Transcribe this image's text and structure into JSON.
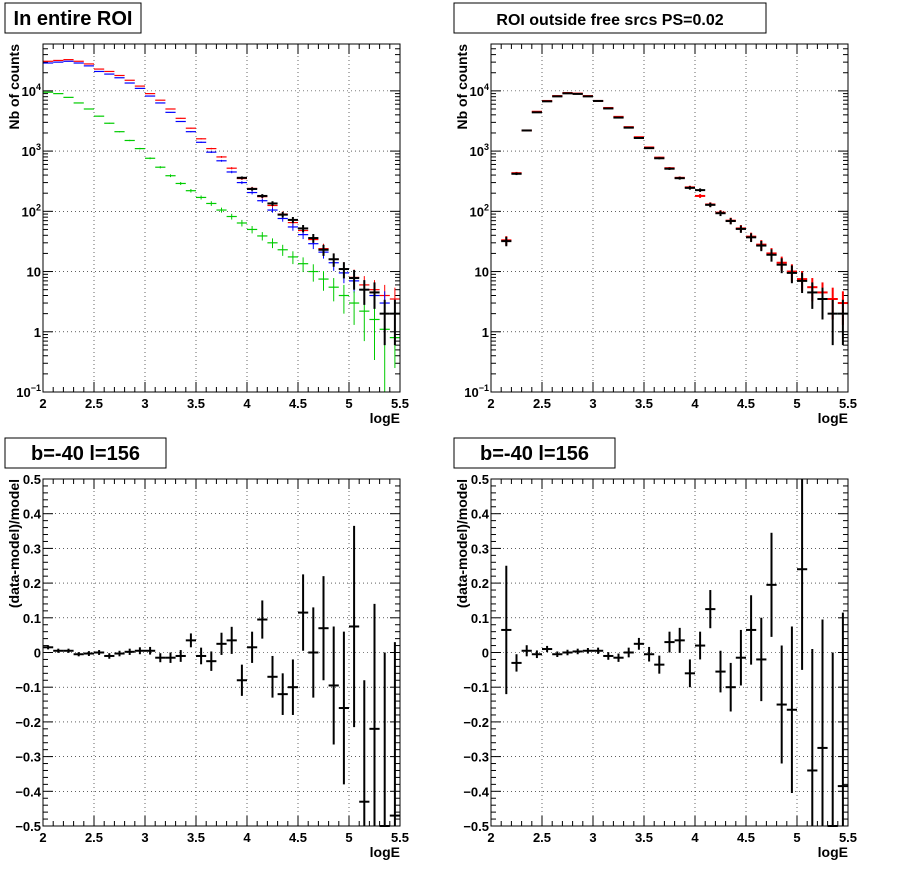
{
  "chart_data": [
    {
      "type": "scatter",
      "title": "In entire ROI",
      "xlabel": "logE",
      "ylabel": "Nb of counts",
      "xlim": [
        2,
        5.5
      ],
      "ylim": [
        0.1,
        60000
      ],
      "yscale": "log",
      "grid": true,
      "x_ticks": [
        "2",
        "2.5",
        "3",
        "3.5",
        "4",
        "4.5",
        "5",
        "5.5"
      ],
      "y_ticks": [
        "10^-1",
        "1",
        "10",
        "10^2",
        "10^3",
        "10^4"
      ],
      "series": [
        {
          "color": "#ff0000",
          "style": "bins",
          "x": [
            2.05,
            2.15,
            2.25,
            2.35,
            2.45,
            2.55,
            2.65,
            2.75,
            2.85,
            2.95,
            3.05,
            3.15,
            3.25,
            3.35,
            3.45,
            3.55,
            3.65,
            3.75,
            3.85,
            3.95,
            4.05,
            4.15,
            4.25,
            4.35,
            4.45,
            4.55,
            4.65,
            4.75,
            4.85,
            4.95,
            5.05,
            5.15,
            5.25,
            5.35,
            5.45
          ],
          "y": [
            31000,
            32000,
            33000,
            31000,
            28000,
            23000,
            21000,
            18000,
            15000,
            12000,
            9000,
            7000,
            5000,
            3500,
            2400,
            1600,
            1100,
            800,
            520,
            350,
            240,
            175,
            125,
            90,
            65,
            48,
            34,
            24,
            16,
            11,
            8,
            6,
            5,
            4,
            3.5
          ],
          "err": [
            176,
            179,
            182,
            176,
            167,
            152,
            145,
            134,
            122,
            110,
            95,
            84,
            71,
            59,
            49,
            40,
            33,
            28,
            23,
            19,
            15,
            13,
            11,
            9.5,
            8,
            7,
            5.8,
            4.9,
            4,
            3.3,
            2.8,
            2.4,
            2.2,
            2,
            1.9
          ]
        },
        {
          "color": "#0000ff",
          "style": "bins",
          "x": [
            2.05,
            2.15,
            2.25,
            2.35,
            2.45,
            2.55,
            2.65,
            2.75,
            2.85,
            2.95,
            3.05,
            3.15,
            3.25,
            3.35,
            3.45,
            3.55,
            3.65,
            3.75,
            3.85,
            3.95,
            4.05,
            4.15,
            4.25,
            4.35,
            4.45,
            4.55,
            4.65,
            4.75,
            4.85,
            4.95,
            5.05,
            5.15,
            5.25,
            5.35,
            5.45
          ],
          "y": [
            29000,
            30000,
            31000,
            29000,
            26000,
            21000,
            19000,
            16500,
            13500,
            11000,
            8200,
            6300,
            4400,
            3100,
            2100,
            1400,
            960,
            690,
            450,
            300,
            205,
            150,
            105,
            76,
            55,
            41,
            29,
            21,
            14,
            9.5,
            7,
            5,
            4,
            3,
            2
          ],
          "err": [
            170,
            173,
            176,
            170,
            161,
            145,
            138,
            128,
            116,
            105,
            91,
            79,
            66,
            56,
            46,
            37,
            31,
            26,
            21,
            17,
            14,
            12,
            10,
            8.7,
            7.4,
            6.4,
            5.4,
            4.6,
            3.7,
            3.1,
            2.6,
            2.2,
            2,
            1.7,
            1.4
          ]
        },
        {
          "color": "#00cc00",
          "style": "bins",
          "x": [
            2.05,
            2.15,
            2.25,
            2.35,
            2.45,
            2.55,
            2.65,
            2.75,
            2.85,
            2.95,
            3.05,
            3.15,
            3.25,
            3.35,
            3.45,
            3.55,
            3.65,
            3.75,
            3.85,
            3.95,
            4.05,
            4.15,
            4.25,
            4.35,
            4.45,
            4.55,
            4.65,
            4.75,
            4.85,
            4.95,
            5.05,
            5.15,
            5.25,
            5.35,
            5.45
          ],
          "y": [
            9500,
            9000,
            7800,
            6300,
            5000,
            3800,
            2900,
            2100,
            1500,
            1100,
            760,
            540,
            390,
            290,
            220,
            170,
            135,
            105,
            82,
            64,
            50,
            39,
            30,
            23,
            17.5,
            13.5,
            10,
            7.5,
            5.5,
            4,
            3,
            2.2,
            1.6,
            1.1,
            0.8
          ],
          "err": [
            97,
            95,
            88,
            79,
            71,
            62,
            54,
            46,
            39,
            33,
            28,
            23,
            20,
            17,
            15,
            13,
            12,
            10,
            9,
            8,
            7,
            6.2,
            5.5,
            4.8,
            4.2,
            3.7,
            3.2,
            2.7,
            2.3,
            2,
            1.7,
            1.5,
            1.26,
            1.05,
            0.55
          ]
        },
        {
          "color": "#000000",
          "style": "points",
          "x": [
            3.95,
            4.05,
            4.15,
            4.25,
            4.35,
            4.45,
            4.55,
            4.65,
            4.75,
            4.85,
            4.95,
            5.05,
            5.15,
            5.25,
            5.35,
            5.45
          ],
          "y": [
            360,
            235,
            180,
            135,
            88,
            72,
            52,
            36,
            23,
            16,
            11,
            7.8,
            5,
            4.5,
            2,
            2
          ],
          "err": [
            19,
            15,
            13,
            12,
            9.4,
            8.5,
            7.2,
            6,
            4.8,
            4,
            3.3,
            2.8,
            2.2,
            2.1,
            1.4,
            1.4
          ]
        }
      ]
    },
    {
      "type": "scatter",
      "title": "ROI outside free srcs PS=0.02",
      "xlabel": "logE",
      "ylabel": "Nb of counts",
      "xlim": [
        2,
        5.5
      ],
      "ylim": [
        0.1,
        60000
      ],
      "yscale": "log",
      "grid": true,
      "x_ticks": [
        "2",
        "2.5",
        "3",
        "3.5",
        "4",
        "4.5",
        "5",
        "5.5"
      ],
      "y_ticks": [
        "10^-1",
        "1",
        "10",
        "10^2",
        "10^3",
        "10^4"
      ],
      "series": [
        {
          "color": "#ff0000",
          "style": "points",
          "x": [
            2.15,
            2.25,
            2.35,
            2.45,
            2.55,
            2.65,
            2.75,
            2.85,
            2.95,
            3.05,
            3.15,
            3.25,
            3.35,
            3.45,
            3.55,
            3.65,
            3.75,
            3.85,
            3.95,
            4.05,
            4.15,
            4.25,
            4.35,
            4.45,
            4.55,
            4.65,
            4.75,
            4.85,
            4.95,
            5.05,
            5.15,
            5.25,
            5.35,
            5.45
          ],
          "y": [
            33,
            430,
            2200,
            4500,
            6800,
            8200,
            9200,
            9000,
            8200,
            6800,
            5200,
            3700,
            2500,
            1700,
            1150,
            780,
            520,
            360,
            250,
            180,
            130,
            95,
            70,
            52,
            38,
            28,
            20,
            14,
            10,
            7.5,
            5.5,
            4.5,
            3.5,
            3
          ],
          "err": [
            5.7,
            21,
            47,
            67,
            82,
            91,
            96,
            95,
            91,
            82,
            72,
            61,
            50,
            41,
            34,
            28,
            23,
            19,
            16,
            13,
            11,
            9.7,
            8.4,
            7.2,
            6.2,
            5.3,
            4.5,
            3.7,
            3.2,
            2.7,
            2.3,
            2.1,
            1.9,
            1.7
          ]
        },
        {
          "color": "#000000",
          "style": "points",
          "x": [
            2.15,
            2.25,
            2.35,
            2.45,
            2.55,
            2.65,
            2.75,
            2.85,
            2.95,
            3.05,
            3.15,
            3.25,
            3.35,
            3.45,
            3.55,
            3.65,
            3.75,
            3.85,
            3.95,
            4.05,
            4.15,
            4.25,
            4.35,
            4.45,
            4.55,
            4.65,
            4.75,
            4.85,
            4.95,
            5.05,
            5.15,
            5.25,
            5.35,
            5.45
          ],
          "y": [
            32,
            420,
            2200,
            4400,
            6700,
            8100,
            9100,
            8900,
            8100,
            6800,
            5100,
            3600,
            2450,
            1650,
            1120,
            760,
            510,
            355,
            245,
            225,
            128,
            93,
            69,
            51,
            37,
            27,
            19,
            13,
            9.5,
            7,
            4.5,
            3.5,
            2,
            2
          ],
          "err": [
            5.7,
            20,
            47,
            66,
            82,
            90,
            95,
            94,
            90,
            82,
            71,
            60,
            49,
            41,
            33,
            28,
            23,
            19,
            16,
            15,
            11,
            9.6,
            8.3,
            7.1,
            6.1,
            5.2,
            4.4,
            3.6,
            3.1,
            2.6,
            2.1,
            1.9,
            1.4,
            1.4
          ]
        }
      ]
    },
    {
      "type": "scatter",
      "title": "b=-40 l=156",
      "xlabel": "logE",
      "ylabel": "(data-model)/model",
      "xlim": [
        2,
        5.5
      ],
      "ylim": [
        -0.5,
        0.5
      ],
      "yscale": "linear",
      "grid": true,
      "x_ticks": [
        "2",
        "2.5",
        "3",
        "3.5",
        "4",
        "4.5",
        "5",
        "5.5"
      ],
      "y_ticks": [
        "-0.5",
        "-0.4",
        "-0.3",
        "-0.2",
        "-0.1",
        "0",
        "0.1",
        "0.2",
        "0.3",
        "0.4",
        "0.5"
      ],
      "series": [
        {
          "color": "#000000",
          "style": "points",
          "x": [
            2.05,
            2.15,
            2.25,
            2.35,
            2.45,
            2.55,
            2.65,
            2.75,
            2.85,
            2.95,
            3.05,
            3.15,
            3.25,
            3.35,
            3.45,
            3.55,
            3.65,
            3.75,
            3.85,
            3.95,
            4.05,
            4.15,
            4.25,
            4.35,
            4.45,
            4.55,
            4.65,
            4.75,
            4.85,
            4.95,
            5.05,
            5.15,
            5.25,
            5.35,
            5.45
          ],
          "y": [
            0.015,
            0.005,
            0.005,
            -0.005,
            -0.003,
            0.0,
            -0.01,
            -0.003,
            0.002,
            0.005,
            0.005,
            -0.015,
            -0.015,
            -0.01,
            0.035,
            -0.01,
            -0.025,
            0.025,
            0.035,
            -0.08,
            0.015,
            0.095,
            -0.07,
            -0.12,
            -0.1,
            0.115,
            0.0,
            0.07,
            -0.095,
            -0.16,
            0.075,
            -0.43,
            -0.22,
            -0.5,
            -0.47
          ],
          "err": [
            0.006,
            0.006,
            0.006,
            0.006,
            0.007,
            0.007,
            0.008,
            0.008,
            0.009,
            0.01,
            0.011,
            0.013,
            0.015,
            0.017,
            0.02,
            0.024,
            0.028,
            0.032,
            0.039,
            0.045,
            0.045,
            0.055,
            0.06,
            0.06,
            0.08,
            0.11,
            0.13,
            0.15,
            0.17,
            0.22,
            0.29,
            0.35,
            0.36,
            0.5,
            0.5
          ]
        }
      ]
    },
    {
      "type": "scatter",
      "title": "b=-40 l=156",
      "xlabel": "logE",
      "ylabel": "(data-model)/model",
      "xlim": [
        2,
        5.5
      ],
      "ylim": [
        -0.5,
        0.5
      ],
      "yscale": "linear",
      "grid": true,
      "x_ticks": [
        "2",
        "2.5",
        "3",
        "3.5",
        "4",
        "4.5",
        "5",
        "5.5"
      ],
      "y_ticks": [
        "-0.5",
        "-0.4",
        "-0.3",
        "-0.2",
        "-0.1",
        "0",
        "0.1",
        "0.2",
        "0.3",
        "0.4",
        "0.5"
      ],
      "series": [
        {
          "color": "#000000",
          "style": "points",
          "x": [
            2.15,
            2.25,
            2.35,
            2.45,
            2.55,
            2.65,
            2.75,
            2.85,
            2.95,
            3.05,
            3.15,
            3.25,
            3.35,
            3.45,
            3.55,
            3.65,
            3.75,
            3.85,
            3.95,
            4.05,
            4.15,
            4.25,
            4.35,
            4.45,
            4.55,
            4.65,
            4.75,
            4.85,
            4.95,
            5.05,
            5.15,
            5.25,
            5.35,
            5.45
          ],
          "y": [
            0.065,
            -0.03,
            0.005,
            -0.005,
            0.01,
            -0.005,
            0.0,
            0.003,
            0.005,
            0.005,
            -0.01,
            -0.015,
            0.0,
            0.025,
            -0.005,
            -0.035,
            0.03,
            0.035,
            -0.06,
            0.02,
            0.125,
            -0.055,
            -0.1,
            -0.015,
            0.065,
            -0.02,
            0.195,
            -0.15,
            -0.165,
            0.24,
            -0.34,
            -0.275,
            -0.5,
            -0.385
          ],
          "err": [
            0.185,
            0.025,
            0.016,
            0.011,
            0.009,
            0.008,
            0.008,
            0.008,
            0.008,
            0.009,
            0.011,
            0.012,
            0.014,
            0.017,
            0.021,
            0.026,
            0.03,
            0.036,
            0.04,
            0.04,
            0.055,
            0.06,
            0.07,
            0.08,
            0.1,
            0.12,
            0.15,
            0.17,
            0.24,
            0.29,
            0.35,
            0.37,
            0.5,
            0.5
          ]
        }
      ]
    }
  ]
}
